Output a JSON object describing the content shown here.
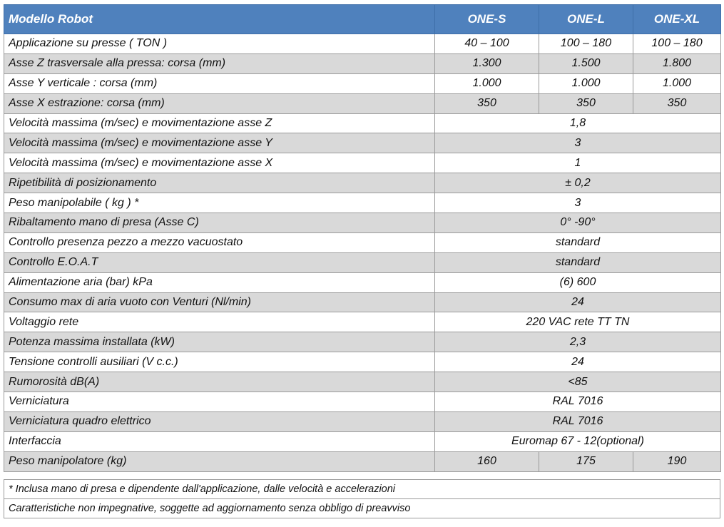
{
  "header": {
    "model_label": "Modello Robot",
    "models": [
      "ONE-S",
      "ONE-L",
      "ONE-XL"
    ]
  },
  "rows": [
    {
      "label": "Applicazione su presse ( TON )",
      "values": [
        "40 – 100",
        "100 – 180",
        "100 – 180"
      ]
    },
    {
      "label": "Asse Z trasversale alla pressa: corsa (mm)",
      "values": [
        "1.300",
        "1.500",
        "1.800"
      ]
    },
    {
      "label": "Asse Y verticale : corsa (mm)",
      "values": [
        "1.000",
        "1.000",
        "1.000"
      ]
    },
    {
      "label": "Asse X estrazione: corsa (mm)",
      "values": [
        "350",
        "350",
        "350"
      ]
    },
    {
      "label": "Velocità massima (m/sec) e movimentazione asse Z",
      "value": "1,8"
    },
    {
      "label": "Velocità massima (m/sec) e movimentazione asse Y",
      "value": "3"
    },
    {
      "label": "Velocità massima (m/sec) e movimentazione asse X",
      "value": "1"
    },
    {
      "label": "Ripetibilità di posizionamento",
      "value": "± 0,2"
    },
    {
      "label": "Peso manipolabile ( kg ) *",
      "value": "3"
    },
    {
      "label": "Ribaltamento mano di presa (Asse C)",
      "value": "0° -90°"
    },
    {
      "label": "Controllo presenza pezzo a mezzo vacuostato",
      "value": "standard"
    },
    {
      "label": "Controllo E.O.A.T",
      "value": "standard"
    },
    {
      "label": "Alimentazione aria (bar) kPa",
      "value": "(6) 600"
    },
    {
      "label": "Consumo max di aria vuoto con Venturi (Nl/min)",
      "value": "24"
    },
    {
      "label": "Voltaggio rete",
      "value": "220 VAC  rete TT TN"
    },
    {
      "label": "Potenza massima installata (kW)",
      "value": "2,3"
    },
    {
      "label": "Tensione controlli ausiliari (V c.c.)",
      "value": "24"
    },
    {
      "label": "Rumorosità  dB(A)",
      "value": "<85"
    },
    {
      "label": "Verniciatura",
      "value": "RAL 7016"
    },
    {
      "label": "Verniciatura quadro elettrico",
      "value": "RAL 7016"
    },
    {
      "label": "Interfaccia",
      "value": "Euromap 67  - 12(optional)"
    },
    {
      "label": "Peso manipolatore (kg)",
      "values": [
        "160",
        "175",
        "190"
      ]
    }
  ],
  "notes": [
    "* Inclusa mano di presa e dipendente dall'applicazione, dalle velocità e accelerazioni",
    "Caratteristiche non impegnative, soggette ad aggiornamento senza obbligo di preavviso"
  ],
  "colors": {
    "header_bg": "#4f81bd",
    "shade_bg": "#d9d9d9",
    "border": "#9a9a9a"
  }
}
